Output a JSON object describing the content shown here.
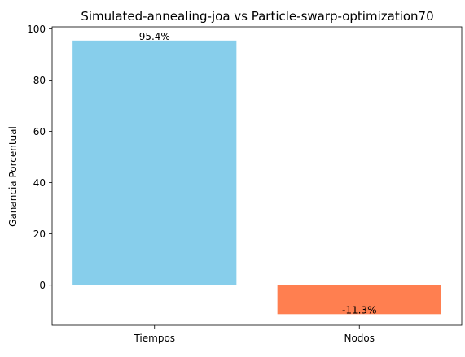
{
  "chart_data": {
    "type": "bar",
    "title": "Simulated-annealing-joa vs Particle-swarp-optimization70",
    "xlabel": "",
    "ylabel": "Ganancia Porcentual",
    "categories": [
      "Tiempos",
      "Nodos"
    ],
    "values": [
      95.4,
      -11.3
    ],
    "data_labels": [
      "95.4%",
      "-11.3%"
    ],
    "colors": [
      "#87ceeb",
      "#ff7f50"
    ],
    "ylim": [
      -15.64,
      100.74
    ],
    "yticks": [
      0,
      20,
      40,
      60,
      80,
      100
    ],
    "grid": false,
    "legend": "none"
  }
}
